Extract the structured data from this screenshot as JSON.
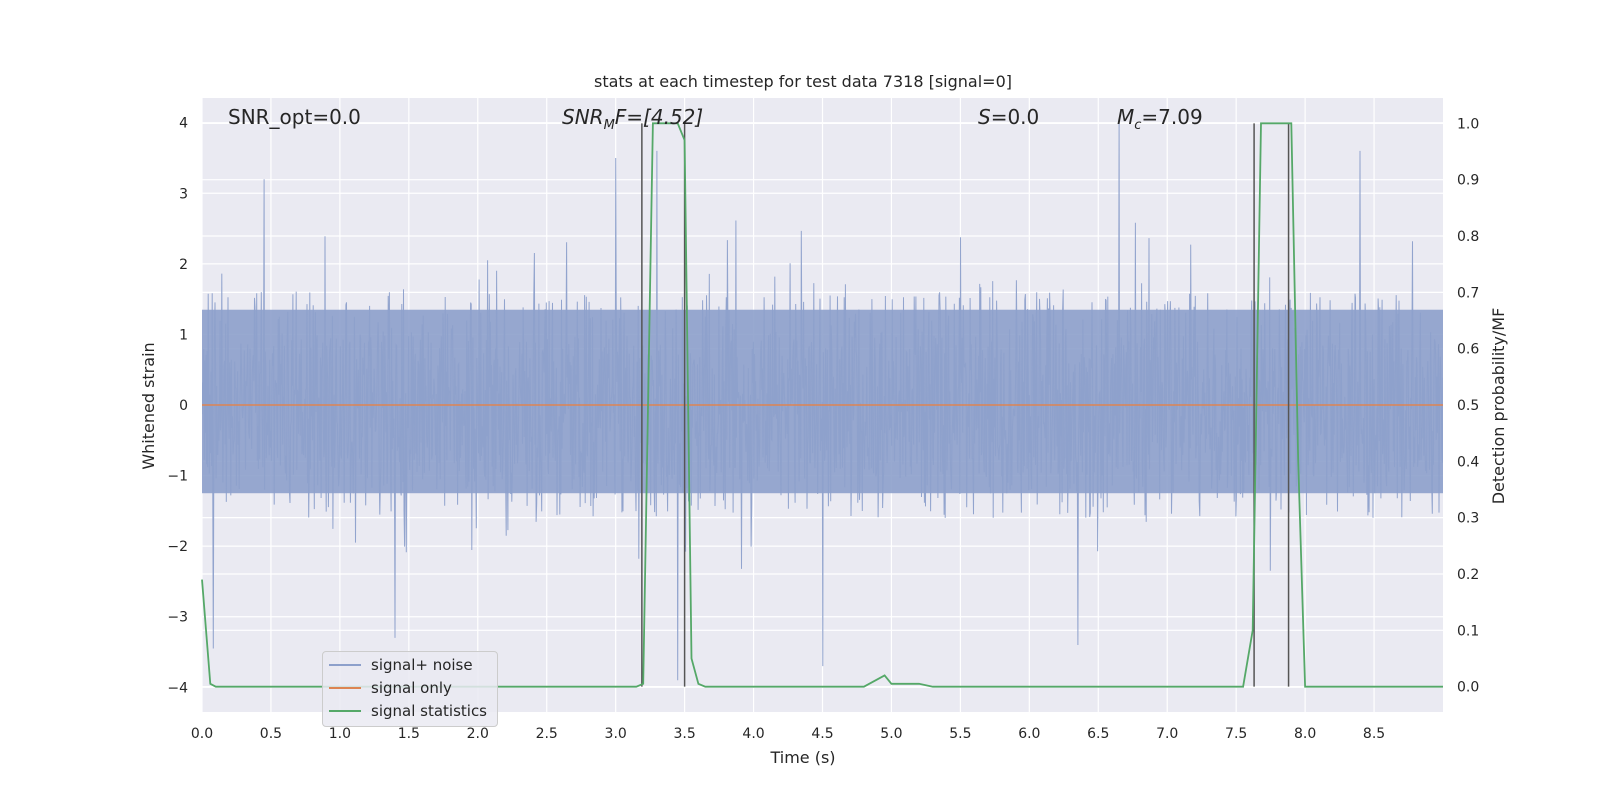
{
  "chart_data": {
    "type": "line",
    "title": "stats at each timestep for test data 7318 [signal=0]",
    "xlabel": "Time (s)",
    "ylabel_left": "Whitened strain",
    "ylabel_right": "Detection probability/MF",
    "xlim": [
      0.0,
      9.0
    ],
    "ylim_left": [
      -4.35,
      4.35
    ],
    "ylim_right": [
      -0.045,
      1.045
    ],
    "xticks": [
      "0.0",
      "0.5",
      "1.0",
      "1.5",
      "2.0",
      "2.5",
      "3.0",
      "3.5",
      "4.0",
      "4.5",
      "5.0",
      "5.5",
      "6.0",
      "6.5",
      "7.0",
      "7.5",
      "8.0",
      "8.5"
    ],
    "yticks_left": [
      "4",
      "3",
      "2",
      "1",
      "0",
      "−1",
      "−2",
      "−3",
      "−4"
    ],
    "yticks_right": [
      "1.0",
      "0.9",
      "0.8",
      "0.7",
      "0.6",
      "0.5",
      "0.4",
      "0.3",
      "0.2",
      "0.1",
      "0.0"
    ],
    "grid": true,
    "legend_placement": "lower-left",
    "annotations": {
      "snr_opt": "SNR_opt=0.0",
      "snr_mf_sym": "SNR",
      "snr_mf_sub": "M",
      "snr_mf_rest": "F=[4.52]",
      "s_sym": "S",
      "s_rest": "=0.0",
      "mc_sym": "M",
      "mc_sub": "c",
      "mc_rest": "=7.09"
    },
    "series": [
      {
        "name": "signal+ noise",
        "color": "#8da0cb",
        "description_values": {
          "typical_range": [
            -1.4,
            1.7
          ],
          "peak_maxima": [
            [
              0.45,
              3.2
            ],
            [
              3.0,
              3.5
            ],
            [
              3.3,
              3.6
            ],
            [
              6.65,
              4.0
            ],
            [
              8.4,
              3.6
            ]
          ],
          "peak_minima": [
            [
              0.08,
              -3.45
            ],
            [
              1.4,
              -3.3
            ],
            [
              3.45,
              -3.9
            ],
            [
              4.5,
              -3.7
            ],
            [
              6.35,
              -3.4
            ]
          ]
        }
      },
      {
        "name": "signal only",
        "color": "#dd8452",
        "x": [
          0.0,
          9.0
        ],
        "y": [
          0.0,
          0.0
        ]
      },
      {
        "name": "signal statistics",
        "color": "#55a868",
        "axis": "right",
        "x": [
          0.0,
          0.06,
          0.1,
          0.15,
          3.15,
          3.2,
          3.27,
          3.3,
          3.45,
          3.5,
          3.55,
          3.6,
          3.65,
          4.8,
          4.95,
          5.0,
          5.1,
          5.2,
          5.3,
          7.55,
          7.62,
          7.68,
          7.85,
          7.9,
          7.95,
          8.0,
          9.0
        ],
        "y": [
          0.19,
          0.005,
          0.0,
          0.0,
          0.0,
          0.005,
          1.0,
          1.0,
          1.0,
          0.97,
          0.05,
          0.005,
          0.0,
          0.0,
          0.02,
          0.005,
          0.005,
          0.005,
          0.0,
          0.0,
          0.1,
          1.0,
          1.0,
          1.0,
          0.4,
          0.0,
          0.0
        ]
      }
    ],
    "vertical_markers_x": [
      3.19,
      3.5,
      7.63,
      7.88
    ]
  }
}
